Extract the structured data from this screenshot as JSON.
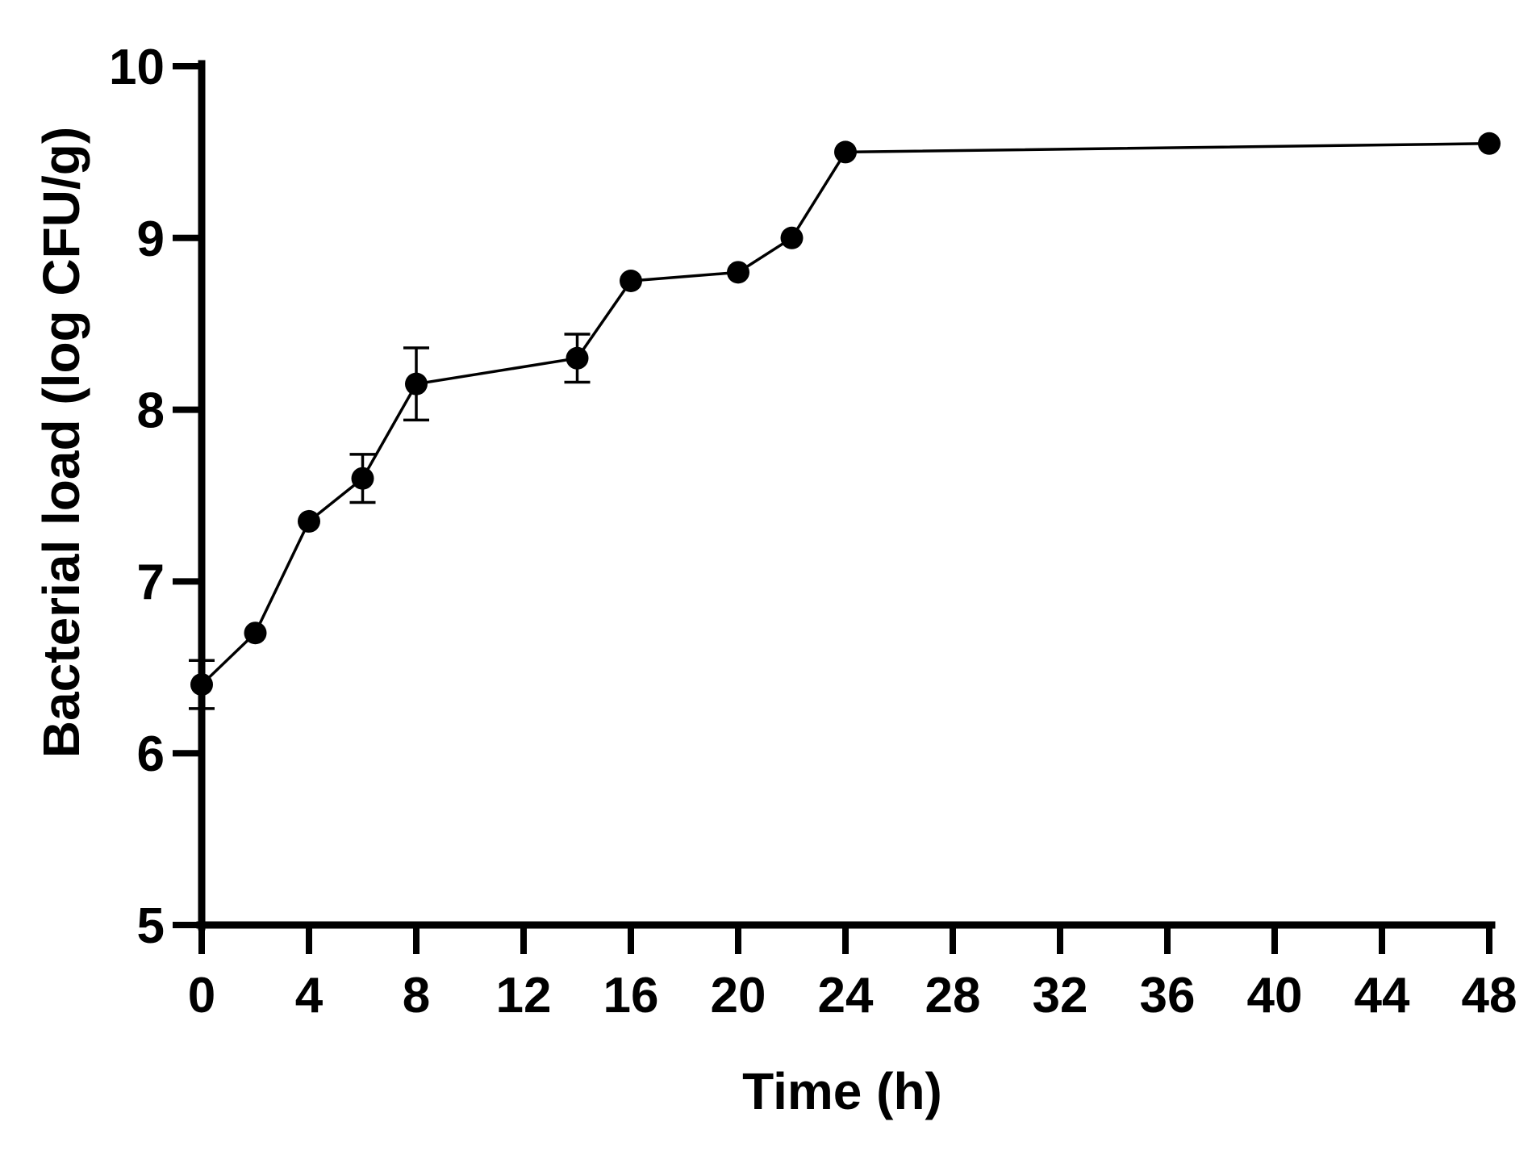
{
  "chart_data": {
    "type": "line",
    "title": "",
    "xlabel": "Time (h)",
    "ylabel": "Bacterial load (log CFU/g)",
    "xlim": [
      0,
      48
    ],
    "ylim": [
      5,
      10
    ],
    "x_ticks": [
      0,
      4,
      8,
      12,
      16,
      20,
      24,
      28,
      32,
      36,
      40,
      44,
      48
    ],
    "y_ticks": [
      5,
      6,
      7,
      8,
      9,
      10
    ],
    "x_tick_labels": [
      "0",
      "4",
      "8",
      "12",
      "16",
      "20",
      "24",
      "28",
      "32",
      "36",
      "40",
      "44",
      "48"
    ],
    "y_tick_labels": [
      "5",
      "6",
      "7",
      "8",
      "9",
      "10"
    ],
    "grid": false,
    "series": [
      {
        "x": [
          0,
          2,
          4,
          6,
          8,
          14,
          16,
          20,
          22,
          24,
          48
        ],
        "values": [
          6.4,
          6.7,
          7.35,
          7.6,
          8.15,
          8.3,
          8.75,
          8.8,
          9.0,
          9.5,
          9.55
        ],
        "error": [
          0.14,
          0,
          0,
          0.14,
          0.21,
          0.14,
          0,
          0,
          0,
          0,
          0
        ]
      }
    ],
    "colors": {
      "line": "#000000",
      "marker": "#000000"
    }
  }
}
